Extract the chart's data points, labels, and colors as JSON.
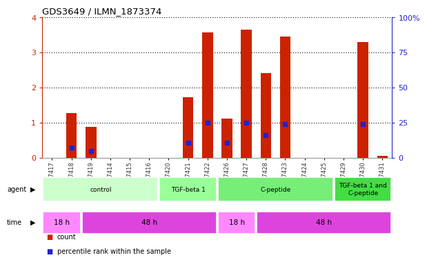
{
  "title": "GDS3649 / ILMN_1873374",
  "samples": [
    "GSM507417",
    "GSM507418",
    "GSM507419",
    "GSM507414",
    "GSM507415",
    "GSM507416",
    "GSM507420",
    "GSM507421",
    "GSM507422",
    "GSM507426",
    "GSM507427",
    "GSM507428",
    "GSM507423",
    "GSM507424",
    "GSM507425",
    "GSM507429",
    "GSM507430",
    "GSM507431"
  ],
  "counts": [
    0.0,
    1.27,
    0.87,
    0.0,
    0.0,
    0.0,
    0.0,
    1.73,
    3.58,
    1.12,
    3.65,
    2.42,
    3.45,
    0.0,
    0.0,
    0.0,
    3.3,
    0.05
  ],
  "percentile_scaled": [
    0.0,
    0.28,
    0.2,
    0.0,
    0.0,
    0.0,
    0.0,
    0.42,
    1.0,
    0.42,
    1.0,
    0.65,
    0.95,
    0.0,
    0.0,
    0.0,
    0.95,
    0.0
  ],
  "bar_color": "#cc2200",
  "percentile_color": "#2222cc",
  "ylim": [
    0,
    4
  ],
  "y2lim": [
    0,
    100
  ],
  "yticks": [
    0,
    1,
    2,
    3,
    4
  ],
  "y2ticks": [
    0,
    25,
    50,
    75,
    100
  ],
  "grid_color": "#000000",
  "bg_color": "#ffffff",
  "plot_bg": "#ffffff",
  "agent_segments": [
    {
      "text": "control",
      "start": 0,
      "end": 6,
      "color": "#ccffcc"
    },
    {
      "text": "TGF-beta 1",
      "start": 6,
      "end": 9,
      "color": "#99ff99"
    },
    {
      "text": "C-peptide",
      "start": 9,
      "end": 15,
      "color": "#77ee77"
    },
    {
      "text": "TGF-beta 1 and\nC-peptide",
      "start": 15,
      "end": 18,
      "color": "#44dd44"
    }
  ],
  "time_segments": [
    {
      "text": "18 h",
      "start": 0,
      "end": 2,
      "color": "#ff88ff"
    },
    {
      "text": "48 h",
      "start": 2,
      "end": 9,
      "color": "#dd44dd"
    },
    {
      "text": "18 h",
      "start": 9,
      "end": 11,
      "color": "#ff88ff"
    },
    {
      "text": "48 h",
      "start": 11,
      "end": 18,
      "color": "#dd44dd"
    }
  ],
  "legend_items": [
    {
      "label": "count",
      "color": "#cc2200"
    },
    {
      "label": "percentile rank within the sample",
      "color": "#2222cc"
    }
  ],
  "left_tick_color": "#cc2200",
  "right_tick_color": "#2222cc",
  "sample_tick_color": "#333333"
}
